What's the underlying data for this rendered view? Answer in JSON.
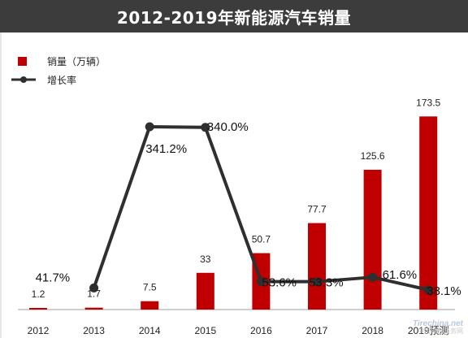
{
  "watermark": {
    "logo": "Tirechina.net",
    "text": "中国轮胎商务网"
  },
  "chart_data": {
    "type": "bar",
    "title": "2012-2019年新能源汽车销量",
    "categories": [
      "2012",
      "2013",
      "2014",
      "2015",
      "2016",
      "2017",
      "2018",
      "2019预测"
    ],
    "series": [
      {
        "name": "销量（万辆）",
        "type": "bar",
        "color": "#c00000",
        "values": [
          1.2,
          1.7,
          7.5,
          33,
          50.7,
          77.7,
          125.6,
          173.5
        ],
        "labels": [
          "1.2",
          "1.7",
          "7.5",
          "33",
          "50.7",
          "77.7",
          "125.6",
          "173.5"
        ]
      },
      {
        "name": "增长率",
        "type": "line",
        "color": "#2f2f2f",
        "values": [
          null,
          41.7,
          341.2,
          340.0,
          53.6,
          53.3,
          61.6,
          38.1
        ],
        "labels": [
          "",
          "41.7%",
          "341.2%",
          "340.0%",
          "53.6%",
          "53.3%",
          "61.6%",
          "38.1%"
        ]
      }
    ],
    "ylim": [
      0,
      200
    ],
    "y2lim": [
      0,
      400
    ],
    "legend": "top-left",
    "grid": false
  }
}
